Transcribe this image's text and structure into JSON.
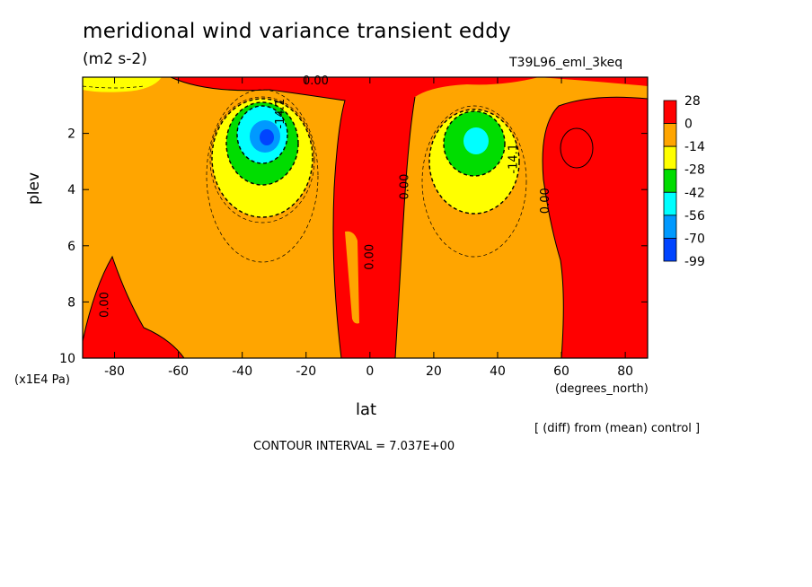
{
  "chart_data": {
    "type": "heatmap",
    "title": "meridional wind variance transient eddy",
    "units": "(m2 s-2)",
    "dataset": "T39L96_eml_3keq",
    "xlabel": "lat",
    "x_units": "(degrees_north)",
    "ylabel": "plev",
    "y_units": "(x1E4 Pa)",
    "note": "[ (diff) from (mean) control ]",
    "contour_interval_text": "CONTOUR INTERVAL = 7.037E+00",
    "xlim": [
      -90,
      87
    ],
    "ylim": [
      10,
      0
    ],
    "x_ticks": [
      -80,
      -60,
      -40,
      -20,
      0,
      20,
      40,
      60,
      80
    ],
    "y_ticks": [
      2,
      4,
      6,
      8,
      10
    ],
    "colorbar_labels": [
      "28",
      "0",
      "-14",
      "-28",
      "-42",
      "-56",
      "-70",
      "-99"
    ],
    "colorbar_colors": [
      "#ff0000",
      "#ffa500",
      "#ffff00",
      "#00dd00",
      "#00ffff",
      "#0099ff",
      "#0044ff"
    ],
    "contour_labels": [
      {
        "text": "0.00",
        "x": -17,
        "y": 0.25
      },
      {
        "text": "-14.1",
        "x": -27,
        "y": 1.3
      },
      {
        "text": "0.00",
        "x": 12,
        "y": 3.9
      },
      {
        "text": "0.00",
        "x": 1,
        "y": 6.4
      },
      {
        "text": "0.00",
        "x": 56,
        "y": 4.4
      },
      {
        "text": "-14.1",
        "x": 46,
        "y": 2.9
      },
      {
        "text": "0.00",
        "x": -82,
        "y": 8.1
      }
    ]
  }
}
